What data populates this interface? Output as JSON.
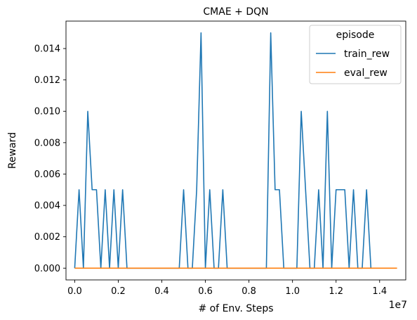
{
  "chart_data": {
    "type": "line",
    "title": "CMAE + DQN",
    "xlabel": "# of Env. Steps",
    "ylabel": "Reward",
    "x_offset_label": "1e7",
    "xlim": [
      -0.04,
      1.52
    ],
    "ylim": [
      -0.00075,
      0.01575
    ],
    "xticks": [
      0.0,
      0.2,
      0.4,
      0.6,
      0.8,
      1.0,
      1.2,
      1.4
    ],
    "xtick_labels": [
      "0.0",
      "0.2",
      "0.4",
      "0.6",
      "0.8",
      "1.0",
      "1.2",
      "1.4"
    ],
    "yticks": [
      0.0,
      0.002,
      0.004,
      0.006,
      0.008,
      0.01,
      0.012,
      0.014
    ],
    "ytick_labels": [
      "0.000",
      "0.002",
      "0.004",
      "0.006",
      "0.008",
      "0.010",
      "0.012",
      "0.014"
    ],
    "grid": false,
    "legend": {
      "title": "episode",
      "placement": "top-right"
    },
    "series": [
      {
        "name": "train_rew",
        "color": "#1f77b4",
        "x": [
          0.0,
          0.02,
          0.04,
          0.06,
          0.08,
          0.1,
          0.12,
          0.14,
          0.16,
          0.18,
          0.2,
          0.22,
          0.24,
          0.26,
          0.28,
          0.3,
          0.32,
          0.34,
          0.36,
          0.38,
          0.4,
          0.42,
          0.44,
          0.46,
          0.48,
          0.5,
          0.52,
          0.54,
          0.56,
          0.58,
          0.6,
          0.62,
          0.64,
          0.66,
          0.68,
          0.7,
          0.72,
          0.74,
          0.76,
          0.78,
          0.8,
          0.82,
          0.84,
          0.86,
          0.88,
          0.9,
          0.92,
          0.94,
          0.96,
          0.98,
          1.0,
          1.02,
          1.04,
          1.06,
          1.08,
          1.1,
          1.12,
          1.14,
          1.16,
          1.18,
          1.2,
          1.22,
          1.24,
          1.26,
          1.28,
          1.3,
          1.32,
          1.34,
          1.36
        ],
        "y": [
          0.0,
          0.005,
          0.0,
          0.01,
          0.005,
          0.005,
          0.0,
          0.005,
          0.0,
          0.005,
          0.0,
          0.005,
          0.0,
          0.0,
          0.0,
          0.0,
          0.0,
          0.0,
          0.0,
          0.0,
          0.0,
          0.0,
          0.0,
          0.0,
          0.0,
          0.005,
          0.0,
          0.0,
          0.005,
          0.015,
          0.0,
          0.005,
          0.0,
          0.0,
          0.005,
          0.0,
          0.0,
          0.0,
          0.0,
          0.0,
          0.0,
          0.0,
          0.0,
          0.0,
          0.0,
          0.015,
          0.005,
          0.005,
          0.0,
          0.0,
          0.0,
          0.0,
          0.01,
          0.005,
          0.0,
          0.0,
          0.005,
          0.0,
          0.01,
          0.0,
          0.005,
          0.005,
          0.005,
          0.0,
          0.005,
          0.0,
          0.0,
          0.005,
          0.0
        ]
      },
      {
        "name": "eval_rew",
        "color": "#ff7f0e",
        "x": [
          0.0,
          1.48
        ],
        "y": [
          0.0,
          0.0
        ]
      }
    ]
  }
}
